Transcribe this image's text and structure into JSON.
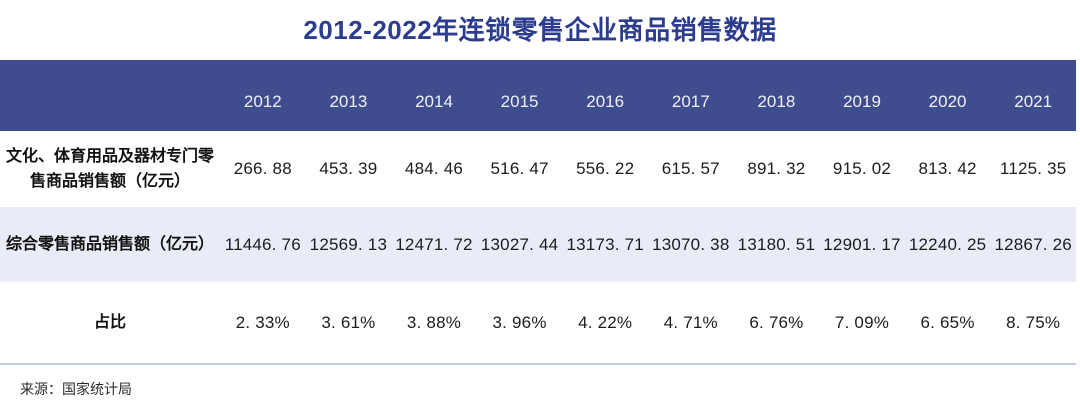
{
  "title": "2012-2022年连锁零售企业商品销售数据",
  "table": {
    "years": [
      "2012",
      "2013",
      "2014",
      "2015",
      "2016",
      "2017",
      "2018",
      "2019",
      "2020",
      "2021"
    ],
    "rows": [
      {
        "label": "文化、体育用品及器材专门零\n售商品销售额（亿元）",
        "values": [
          "266. 88",
          "453. 39",
          "484. 46",
          "516. 47",
          "556. 22",
          "615. 57",
          "891. 32",
          "915. 02",
          "813. 42",
          "1125. 35"
        ]
      },
      {
        "label": "综合零售商品销售额（亿元）",
        "values": [
          "11446. 76",
          "12569. 13",
          "12471. 72",
          "13027. 44",
          "13173. 71",
          "13070. 38",
          "13180. 51",
          "12901. 17",
          "12240. 25",
          "12867. 26"
        ]
      },
      {
        "label": "占比",
        "values": [
          "2. 33%",
          "3. 61%",
          "3. 88%",
          "3. 96%",
          "4. 22%",
          "4. 71%",
          "6. 76%",
          "7. 09%",
          "6. 65%",
          "8. 75%"
        ]
      }
    ]
  },
  "source": "来源：国家统计局",
  "colors": {
    "title": "#2c3d90",
    "header_bg": "#3f4d8e",
    "header_text": "#eef0f8",
    "alt_row_bg": "#e9ecf6",
    "divider": "#c3cbe4"
  },
  "chart_data": {
    "type": "table",
    "title": "2012-2022年连锁零售企业商品销售数据",
    "categories": [
      2012,
      2013,
      2014,
      2015,
      2016,
      2017,
      2018,
      2019,
      2020,
      2021
    ],
    "series": [
      {
        "name": "文化、体育用品及器材专门零售商品销售额（亿元）",
        "values": [
          266.88,
          453.39,
          484.46,
          516.47,
          556.22,
          615.57,
          891.32,
          915.02,
          813.42,
          1125.35
        ]
      },
      {
        "name": "综合零售商品销售额（亿元）",
        "values": [
          11446.76,
          12569.13,
          12471.72,
          13027.44,
          13173.71,
          13070.38,
          13180.51,
          12901.17,
          12240.25,
          12867.26
        ]
      },
      {
        "name": "占比",
        "values": [
          "2.33%",
          "3.61%",
          "3.88%",
          "3.96%",
          "4.22%",
          "4.71%",
          "6.76%",
          "7.09%",
          "6.65%",
          "8.75%"
        ]
      }
    ],
    "source": "来源：国家统计局"
  }
}
